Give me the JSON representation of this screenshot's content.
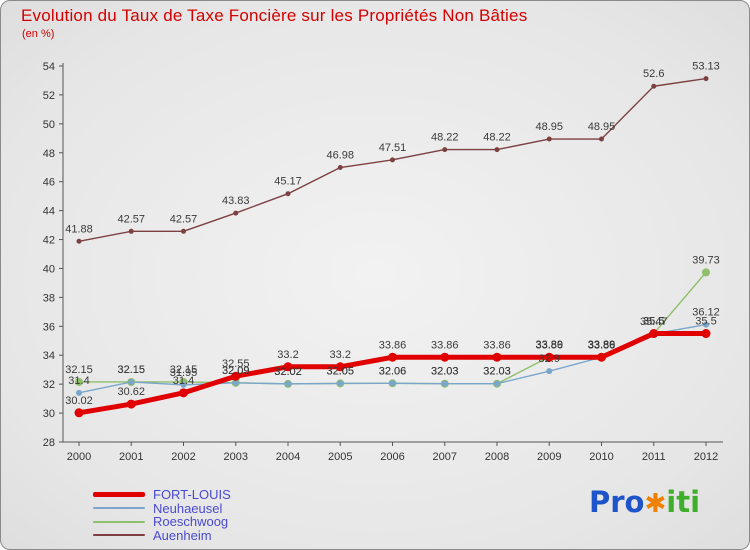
{
  "title": "Evolution du Taux de Taxe Foncière sur les Propriétés Non Bâties",
  "subtitle": "(en %)",
  "colors": {
    "title": "#d40000",
    "legend_text": "#4a4ad0",
    "axis": "#555555",
    "point_label": "#3a3a3a"
  },
  "chart_data": {
    "type": "line",
    "title": "Evolution du Taux de Taxe Foncière sur les Propriétés Non Bâties",
    "subtitle": "(en %)",
    "x": [
      2000,
      2001,
      2002,
      2003,
      2004,
      2005,
      2006,
      2007,
      2008,
      2009,
      2010,
      2011,
      2012
    ],
    "ylim": [
      28,
      54
    ],
    "ytick_step": 2,
    "grid": false,
    "legend_position": "bottom-left",
    "series": [
      {
        "name": "FORT-LOUIS",
        "color": "#e00000",
        "line_width": 5,
        "marker_r": 4.5,
        "values": [
          30.02,
          30.62,
          31.4,
          32.55,
          33.2,
          33.2,
          33.86,
          33.86,
          33.86,
          33.86,
          33.86,
          35.5,
          35.5
        ]
      },
      {
        "name": "Neuhaeusel",
        "color": "#7aa6cc",
        "line_width": 1.4,
        "marker_r": 3,
        "values": [
          31.4,
          32.15,
          31.95,
          32.09,
          32.02,
          32.05,
          32.06,
          32.03,
          32.03,
          32.9,
          33.86,
          35.47,
          36.12
        ]
      },
      {
        "name": "Roeschwoog",
        "color": "#8fbf6b",
        "line_width": 1.4,
        "marker_r": 4,
        "values": [
          32.15,
          32.15,
          32.15,
          32.09,
          32.02,
          32.05,
          32.06,
          32.03,
          32.03,
          33.89,
          33.89,
          35.5,
          39.73
        ]
      },
      {
        "name": "Auenheim",
        "color": "#7d4040",
        "line_width": 1.4,
        "marker_r": 2.5,
        "values": [
          41.88,
          42.57,
          42.57,
          43.83,
          45.17,
          46.98,
          47.51,
          48.22,
          48.22,
          48.95,
          48.95,
          52.6,
          53.13
        ]
      }
    ]
  },
  "legend": {
    "items": [
      "FORT-LOUIS",
      "Neuhaeusel",
      "Roeschwoog",
      "Auenheim"
    ]
  },
  "logo": {
    "pro": "Pro",
    "x": "✱",
    "iti": "iti"
  }
}
